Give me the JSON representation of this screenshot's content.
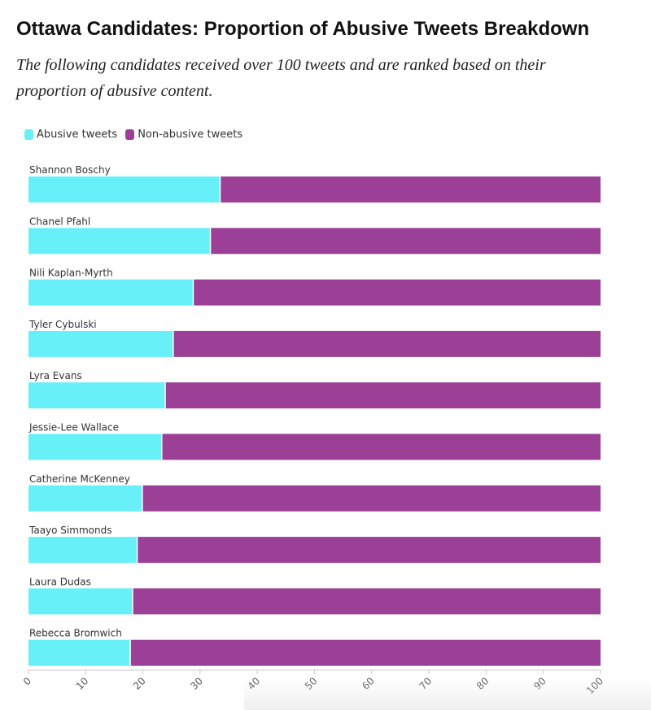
{
  "title": "Ottawa Candidates: Proportion of Abusive Tweets Breakdown",
  "subtitle": "The following candidates received over 100 tweets and are ranked based on their proportion of abusive content.",
  "colors": {
    "abusive": "#68f0f8",
    "non_abusive": "#9b3f97",
    "axis": "#cccccc",
    "text": "#333333"
  },
  "chart_data": {
    "type": "bar",
    "orientation": "horizontal",
    "stacked": true,
    "categories": [
      "Shannon Boschy",
      "Chanel Pfahl",
      "Nili Kaplan-Myrth",
      "Tyler Cybulski",
      "Lyra Evans",
      "Jessie-Lee Wallace",
      "Catherine McKenney",
      "Taayo Simmonds",
      "Laura Dudas",
      "Rebecca Bromwich"
    ],
    "series": [
      {
        "name": "Abusive tweets",
        "color": "#68f0f8",
        "values": [
          33.5,
          31.8,
          28.8,
          25.3,
          23.9,
          23.3,
          19.9,
          19.0,
          18.2,
          17.8
        ]
      },
      {
        "name": "Non-abusive tweets",
        "color": "#9b3f97",
        "values": [
          66.5,
          68.2,
          71.2,
          74.7,
          76.1,
          76.7,
          80.1,
          81.0,
          81.8,
          82.2
        ]
      }
    ],
    "xlim": [
      0,
      100
    ],
    "xticks": [
      "0",
      "10",
      "20",
      "30",
      "40",
      "50",
      "60",
      "70",
      "80",
      "90",
      "100"
    ],
    "legend_position": "top-left",
    "grid": false
  }
}
